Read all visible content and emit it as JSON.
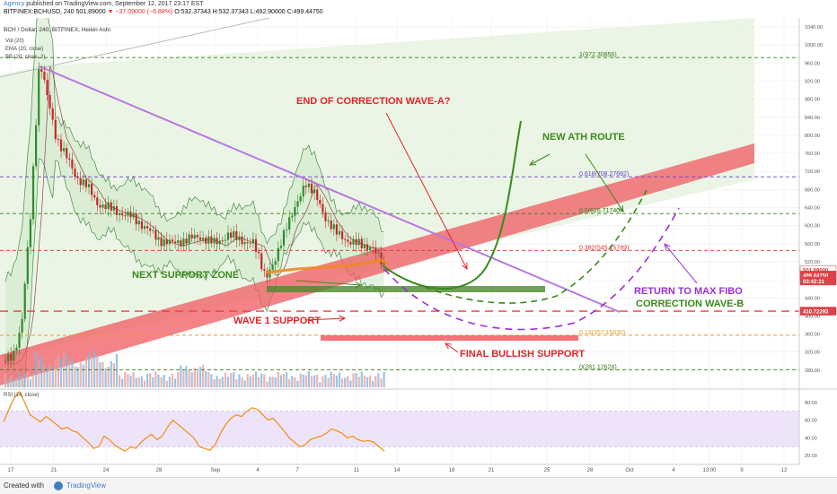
{
  "header": {
    "author": "Agency",
    "published_line": " published on TradingView.com, September 12, 2017 23:17 EST",
    "symbol_line": "BITFINEX:BCHUSD, 240  501.89000",
    "change_text": "▼ −37.09000 (−6.88%)",
    "ohlc_text": "O:532.37343  H:532.37343  L:492.90000  C:499.44750"
  },
  "legend": {
    "title": "BCH / Dollar, 240, BITFINEX, Heikin Ashi",
    "vol": "Vol (20)",
    "ema": "EMA (20, close)",
    "bb": "BB (20, close, 2)",
    "rsi": "RSI (14, close)"
  },
  "annotations": {
    "end_correction": "END OF CORRECTION WAVE-A?",
    "new_ath": "NEW ATH ROUTE",
    "next_support": "NEXT SUPPORT ZONE",
    "wave1": "WAVE 1 SUPPORT",
    "final_support": "FINAL BULLISH SUPPORT",
    "return_fibo": "RETURN TO MAX FIBO",
    "correction_b": "CORRECTION WAVE-B"
  },
  "colors": {
    "red_annotation": "#e8202a",
    "green_annotation": "#3a8a1c",
    "purple_annotation": "#9b2fd6",
    "candle_up": "#2e8b2e",
    "candle_down": "#c62828",
    "trend_channel": "#f05a60",
    "triangle_line": "#b878e0",
    "rsi_line": "#f28c10",
    "rsi_band": "#e8ddf8"
  },
  "footer": {
    "created_with": "Created with",
    "brand": "TradingView"
  },
  "chart_data": {
    "type": "candlestick",
    "title": "BCH / Dollar, 240, BITFINEX, Heikin Ashi",
    "y_ticks": [
      280,
      320,
      360,
      400,
      440,
      480,
      520,
      560,
      600,
      640,
      680,
      720,
      760,
      800,
      840,
      880,
      920,
      960,
      1000,
      1040
    ],
    "ylim": [
      242,
      1060
    ],
    "x_ticks": [
      "17",
      "21",
      "24",
      "28",
      "Sep",
      "4",
      "7",
      "11",
      "14",
      "18",
      "21",
      "25",
      "28",
      "Oct",
      "4",
      "13:00",
      "9",
      "12"
    ],
    "price_markers": [
      {
        "label": "501.89000",
        "value": 501.89,
        "color": "#ffffff",
        "text_color": "#d33"
      },
      {
        "label": "499.44750",
        "value": 490.5,
        "color": "#e04048",
        "text_color": "#ffffff"
      },
      {
        "label": "03:42:21",
        "value": 477.5,
        "color": "#e04048",
        "text_color": "#ffffff"
      },
      {
        "label": "410.72293",
        "value": 410.72,
        "color": "#e04048",
        "text_color": "#ffffff"
      }
    ],
    "fib_levels": [
      {
        "label": "1(972.30856)",
        "value": 972.31,
        "color": "#3a7d1e",
        "style": "dashed"
      },
      {
        "label": "0.618(708.27692)",
        "value": 708.28,
        "color": "#6a3ad0",
        "style": "dashed"
      },
      {
        "label": "0.5(626.71740)",
        "value": 626.72,
        "color": "#3a7d1e",
        "style": "dashed"
      },
      {
        "label": "0.382(545.15789)",
        "value": 545.16,
        "color": "#d83030",
        "style": "dashed"
      },
      {
        "label": "0.13(357.15630)",
        "value": 357.16,
        "color": "#e8a020",
        "style": "dashed"
      },
      {
        "label": "0(281.12624)",
        "value": 281.13,
        "color": "#3a7d1e",
        "style": "dashed"
      }
    ],
    "support_line": {
      "value": 410.72,
      "color": "#e04048"
    },
    "rsi": {
      "title": "RSI (14, close)",
      "ticks": [
        20,
        40,
        60,
        80
      ],
      "upper_band": 70,
      "lower_band": 30,
      "values": [
        58,
        72,
        85,
        92,
        80,
        66,
        62,
        58,
        64,
        60,
        55,
        50,
        52,
        48,
        46,
        40,
        35,
        28,
        30,
        42,
        38,
        32,
        28,
        25,
        30,
        28,
        35,
        40,
        44,
        38,
        42,
        52,
        60,
        55,
        50,
        45,
        40,
        30,
        28,
        26,
        32,
        45,
        55,
        62,
        66,
        64,
        70,
        74,
        72,
        66,
        60,
        62,
        55,
        48,
        40,
        35,
        30,
        32,
        38,
        40,
        42,
        45,
        50,
        48,
        45,
        40,
        42,
        38,
        36,
        37,
        35,
        30,
        25
      ]
    }
  }
}
